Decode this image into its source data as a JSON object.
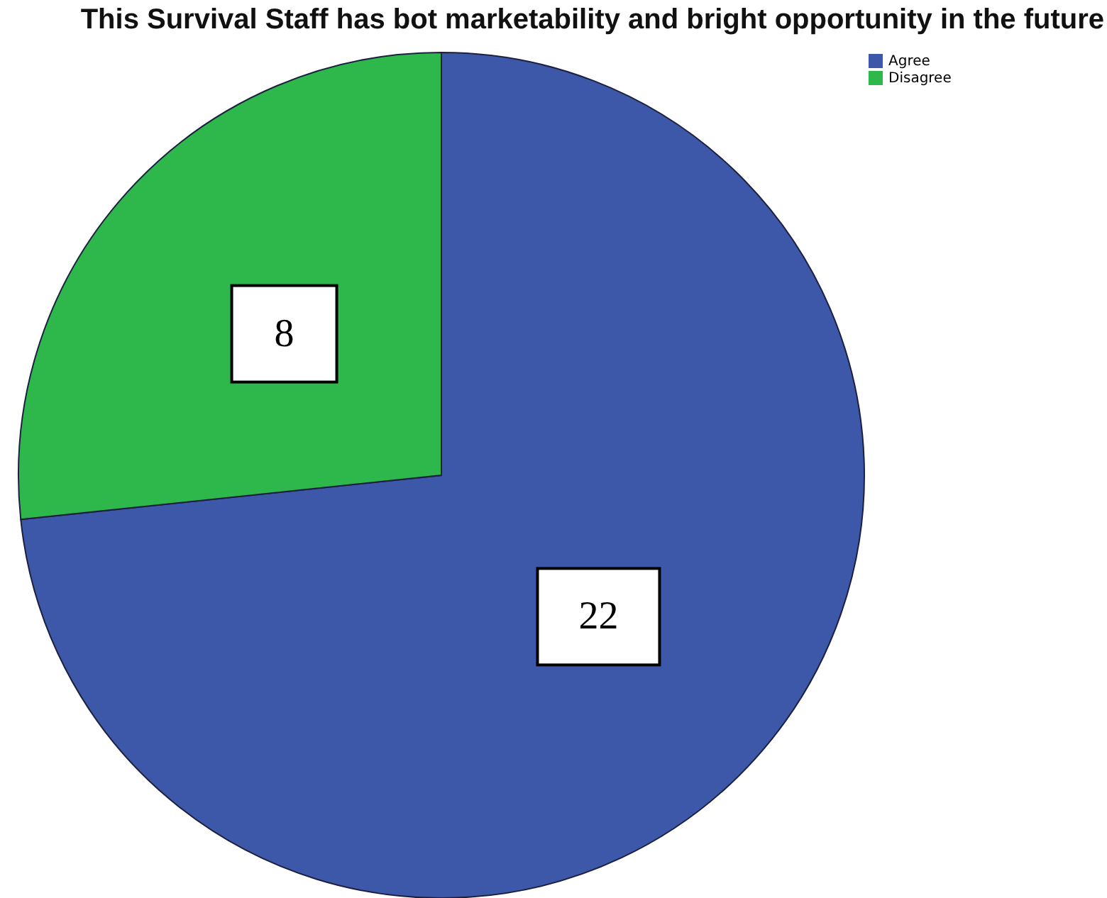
{
  "chart_data": {
    "type": "pie",
    "title": "This Survival Staff has bot marketability and bright opportunity in the future",
    "categories": [
      "Agree",
      "Disagree"
    ],
    "values": [
      22,
      8
    ],
    "colors": [
      "#3e58a9",
      "#2eb84b"
    ],
    "legend": "top right",
    "data_labels": true
  }
}
